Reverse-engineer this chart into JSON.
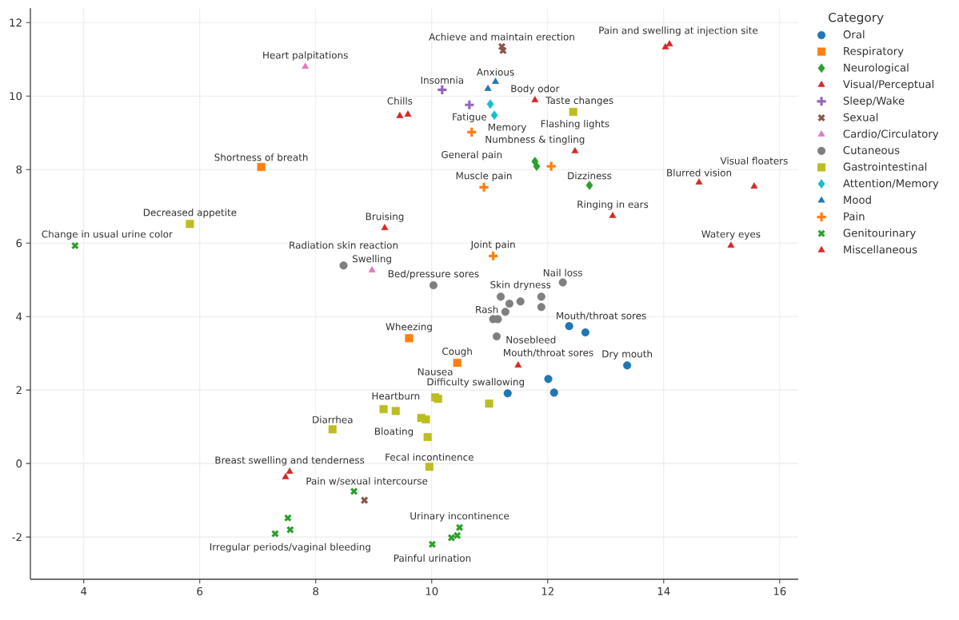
{
  "chart_data": {
    "type": "scatter",
    "legend_title": "Category",
    "legend": "right",
    "grid": true,
    "xlim": [
      3.08,
      16.32
    ],
    "ylim": [
      -3.15,
      12.39
    ],
    "xticks": [
      4,
      6,
      8,
      10,
      12,
      14,
      16
    ],
    "yticks": [
      -2,
      0,
      2,
      4,
      6,
      8,
      10,
      12
    ],
    "series": [
      {
        "name": "Oral",
        "color": "#1f77b4",
        "marker": "circle",
        "x": [
          12.37,
          12.65,
          13.37,
          12.01,
          11.31,
          12.11
        ],
        "values": [
          3.74,
          3.57,
          2.67,
          2.3,
          1.91,
          1.93
        ]
      },
      {
        "name": "Respiratory",
        "color": "#ff7f0e",
        "marker": "square",
        "x": [
          7.06,
          9.61,
          10.44
        ],
        "values": [
          8.07,
          3.41,
          2.74
        ]
      },
      {
        "name": "Neurological",
        "color": "#2ca02c",
        "marker": "diamond",
        "x": [
          11.78,
          11.81,
          12.72
        ],
        "values": [
          8.22,
          8.09,
          7.57
        ]
      },
      {
        "name": "Visual/Perceptual",
        "color": "#d62728",
        "marker": "triangle",
        "x": [
          12.47,
          14.61,
          15.56,
          13.12,
          15.16
        ],
        "values": [
          8.5,
          7.65,
          7.54,
          6.74,
          5.93
        ]
      },
      {
        "name": "Sleep/Wake",
        "color": "#9467bd",
        "marker": "plus",
        "x": [
          10.18,
          10.65
        ],
        "values": [
          10.17,
          9.76
        ]
      },
      {
        "name": "Sexual",
        "color": "#8c564b",
        "marker": "x",
        "x": [
          11.21,
          11.23,
          8.84
        ],
        "values": [
          11.35,
          11.24,
          -1.0
        ]
      },
      {
        "name": "Cardio/Circulatory",
        "color": "#e377c2",
        "marker": "triangle-down",
        "x": [
          7.82,
          8.97
        ],
        "values": [
          10.8,
          5.26
        ]
      },
      {
        "name": "Cutaneous",
        "color": "#7f7f7f",
        "marker": "circle",
        "x": [
          8.48,
          10.03,
          12.26,
          11.19,
          11.34,
          11.53,
          11.89,
          11.89,
          11.27,
          11.06,
          11.14,
          11.12
        ],
        "values": [
          5.39,
          4.85,
          4.93,
          4.54,
          4.35,
          4.41,
          4.54,
          4.26,
          4.13,
          3.93,
          3.93,
          3.46
        ]
      },
      {
        "name": "Gastrointestinal",
        "color": "#bcbd22",
        "marker": "square",
        "x": [
          12.44,
          5.83,
          10.06,
          10.11,
          10.99,
          9.17,
          9.38,
          9.9,
          9.82,
          9.93,
          9.96,
          8.29
        ],
        "values": [
          9.57,
          6.52,
          1.8,
          1.76,
          1.63,
          1.48,
          1.43,
          1.2,
          1.24,
          0.72,
          -0.09,
          0.93
        ]
      },
      {
        "name": "Attention/Memory",
        "color": "#17becf",
        "marker": "diamond",
        "x": [
          11.01,
          11.08
        ],
        "values": [
          9.78,
          9.48
        ]
      },
      {
        "name": "Mood",
        "color": "#1f77b4",
        "marker": "triangle",
        "x": [
          11.1,
          10.97
        ],
        "values": [
          10.39,
          10.2
        ]
      },
      {
        "name": "Pain",
        "color": "#ff7f0e",
        "marker": "plus",
        "x": [
          10.69,
          10.9,
          12.06,
          11.06
        ],
        "values": [
          9.02,
          7.52,
          8.09,
          5.65
        ]
      },
      {
        "name": "Genitourinary",
        "color": "#2ca02c",
        "marker": "x",
        "x": [
          3.85,
          8.66,
          7.52,
          7.56,
          7.3,
          10.48,
          10.34,
          10.44,
          10.01
        ],
        "values": [
          5.93,
          -0.76,
          -1.48,
          -1.8,
          -1.91,
          -1.74,
          -2.02,
          -1.96,
          -2.2
        ]
      },
      {
        "name": "Miscellaneous",
        "color": "#d62728",
        "marker": "triangle-down",
        "x": [
          14.03,
          14.1,
          11.78,
          9.45,
          9.59,
          9.19,
          11.49,
          7.55,
          7.48
        ],
        "values": [
          11.33,
          11.41,
          9.89,
          9.46,
          9.5,
          6.41,
          2.67,
          -0.22,
          -0.37
        ]
      }
    ],
    "annotations": [
      {
        "text": "Mouth/throat sores",
        "x": 12.37,
        "y": 3.74
      },
      {
        "text": "Dry mouth",
        "x": 13.37,
        "y": 2.67
      },
      {
        "text": "Mouth/throat sores",
        "x": 12.01,
        "y": 2.3
      },
      {
        "text": "Difficulty swallowing",
        "x": 11.31,
        "y": 1.91
      },
      {
        "text": "Shortness of breath",
        "x": 7.06,
        "y": 8.07
      },
      {
        "text": "Wheezing",
        "x": 9.61,
        "y": 3.41
      },
      {
        "text": "Cough",
        "x": 10.44,
        "y": 2.74
      },
      {
        "text": "Numbness & tingling",
        "x": 11.78,
        "y": 8.22
      },
      {
        "text": "Dizziness",
        "x": 12.72,
        "y": 7.57
      },
      {
        "text": "Flashing lights",
        "x": 12.47,
        "y": 8.5
      },
      {
        "text": "Blurred vision",
        "x": 14.61,
        "y": 7.65
      },
      {
        "text": "Visual floaters",
        "x": 15.56,
        "y": 7.54
      },
      {
        "text": "Ringing in ears",
        "x": 13.12,
        "y": 6.74
      },
      {
        "text": "Watery eyes",
        "x": 15.16,
        "y": 5.93
      },
      {
        "text": "Insomnia",
        "x": 10.18,
        "y": 10.17
      },
      {
        "text": "Fatigue",
        "x": 10.65,
        "y": 9.76
      },
      {
        "text": "Achieve and maintain erection",
        "x": 11.21,
        "y": 11.35
      },
      {
        "text": "Heart palpitations",
        "x": 7.82,
        "y": 10.8
      },
      {
        "text": "Swelling",
        "x": 8.97,
        "y": 5.26
      },
      {
        "text": "Radiation skin reaction",
        "x": 8.48,
        "y": 5.39
      },
      {
        "text": "Bed/pressure sores",
        "x": 10.03,
        "y": 4.85
      },
      {
        "text": "Nail loss",
        "x": 12.26,
        "y": 4.93
      },
      {
        "text": "Skin dryness",
        "x": 11.53,
        "y": 4.41
      },
      {
        "text": "Rash",
        "x": 11.06,
        "y": 3.93
      },
      {
        "text": "Taste changes",
        "x": 12.44,
        "y": 9.57
      },
      {
        "text": "Decreased appetite",
        "x": 5.83,
        "y": 6.52
      },
      {
        "text": "Nausea",
        "x": 10.06,
        "y": 1.8
      },
      {
        "text": "Heartburn",
        "x": 9.38,
        "y": 1.43
      },
      {
        "text": "Bloating",
        "x": 9.9,
        "y": 1.2
      },
      {
        "text": "Fecal incontinence",
        "x": 9.96,
        "y": -0.09
      },
      {
        "text": "Diarrhea",
        "x": 8.29,
        "y": 0.93
      },
      {
        "text": "Memory",
        "x": 11.08,
        "y": 9.48
      },
      {
        "text": "Anxious",
        "x": 11.1,
        "y": 10.39
      },
      {
        "text": "General pain",
        "x": 10.69,
        "y": 9.02
      },
      {
        "text": "Muscle pain",
        "x": 10.9,
        "y": 7.52
      },
      {
        "text": "Joint pain",
        "x": 11.06,
        "y": 5.65
      },
      {
        "text": "Change in usual urine color",
        "x": 3.85,
        "y": 5.93
      },
      {
        "text": "Pain w/sexual intercourse",
        "x": 8.66,
        "y": -0.76
      },
      {
        "text": "Irregular periods/vaginal bleeding",
        "x": 7.56,
        "y": -1.8
      },
      {
        "text": "Urinary incontinence",
        "x": 10.48,
        "y": -1.74
      },
      {
        "text": "Painful urination",
        "x": 10.01,
        "y": -2.2
      },
      {
        "text": "Pain and swelling at injection site",
        "x": 14.03,
        "y": 11.33
      },
      {
        "text": "Body odor",
        "x": 11.78,
        "y": 9.89
      },
      {
        "text": "Chills",
        "x": 9.45,
        "y": 9.46
      },
      {
        "text": "Bruising",
        "x": 9.19,
        "y": 6.41
      },
      {
        "text": "Nosebleed",
        "x": 11.49,
        "y": 2.67
      },
      {
        "text": "Breast swelling and tenderness",
        "x": 7.55,
        "y": -0.22
      }
    ]
  }
}
